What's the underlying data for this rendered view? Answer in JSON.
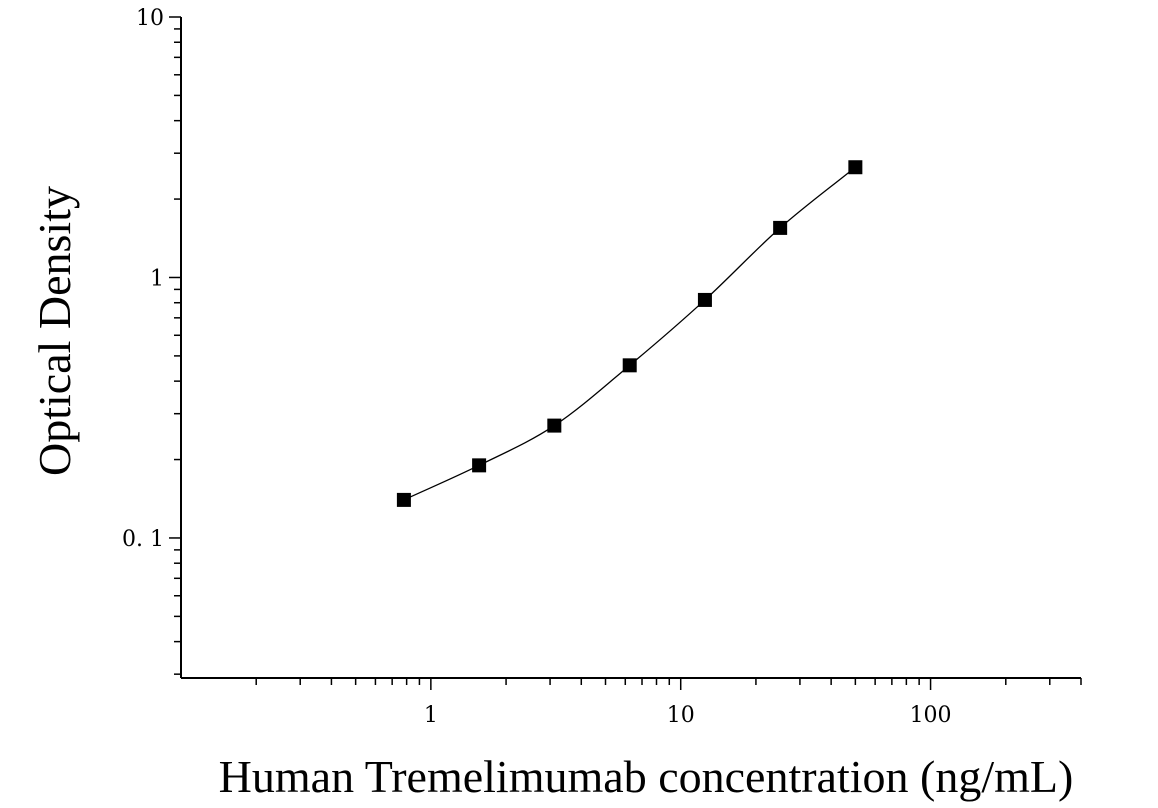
{
  "chart_data": {
    "type": "scatter",
    "title": "",
    "xlabel": "Human Tremelimumab concentration (ng/mL)",
    "ylabel": "Optical Density",
    "x_scale": "log",
    "y_scale": "log",
    "xlim": [
      0.1,
      400
    ],
    "ylim": [
      0.029,
      10
    ],
    "x_ticks": [
      {
        "value": 1,
        "label": "1"
      },
      {
        "value": 10,
        "label": "10"
      },
      {
        "value": 100,
        "label": "100"
      }
    ],
    "y_ticks": [
      {
        "value": 0.1,
        "label": "0. 1"
      },
      {
        "value": 1,
        "label": "1"
      },
      {
        "value": 10,
        "label": "10"
      }
    ],
    "grid": false,
    "legend": "none",
    "series": [
      {
        "marker": "square",
        "color": "#000000",
        "fit_curve": true,
        "points": [
          {
            "x": 0.78,
            "y": 0.14
          },
          {
            "x": 1.56,
            "y": 0.19
          },
          {
            "x": 3.12,
            "y": 0.27
          },
          {
            "x": 6.25,
            "y": 0.46
          },
          {
            "x": 12.5,
            "y": 0.82
          },
          {
            "x": 25,
            "y": 1.55
          },
          {
            "x": 50,
            "y": 2.65
          }
        ]
      }
    ]
  }
}
